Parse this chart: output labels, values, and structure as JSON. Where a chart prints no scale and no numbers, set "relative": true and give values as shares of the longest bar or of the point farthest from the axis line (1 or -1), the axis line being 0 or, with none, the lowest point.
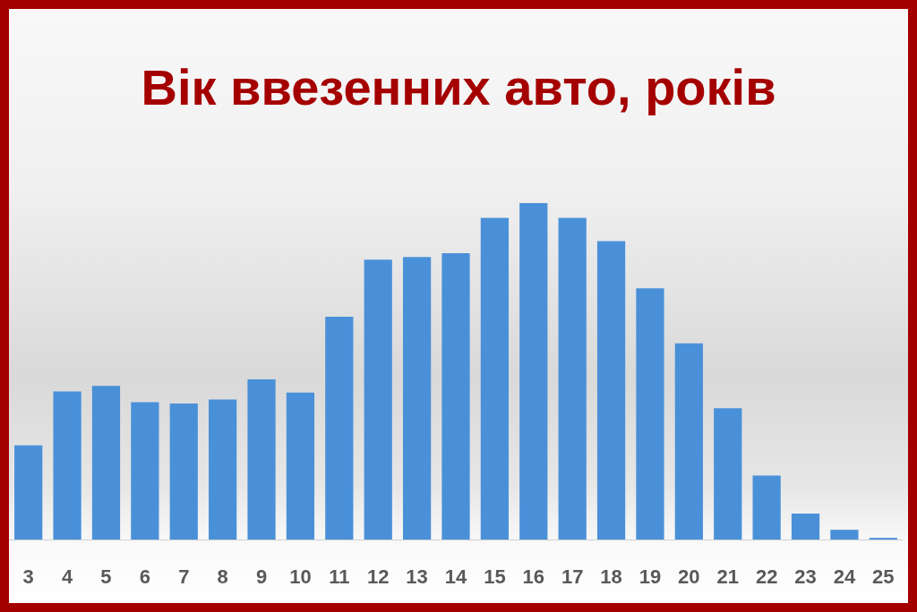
{
  "chart_data": {
    "type": "bar",
    "title": "Вік ввезенних авто, років",
    "categories": [
      "3",
      "4",
      "5",
      "6",
      "7",
      "8",
      "9",
      "10",
      "11",
      "12",
      "13",
      "14",
      "15",
      "16",
      "17",
      "18",
      "19",
      "20",
      "21",
      "22",
      "23",
      "24",
      "25"
    ],
    "values": [
      0.28,
      0.44,
      0.457,
      0.408,
      0.404,
      0.416,
      0.476,
      0.437,
      0.662,
      0.832,
      0.84,
      0.851,
      0.956,
      1,
      0.956,
      0.887,
      0.747,
      0.583,
      0.39,
      0.19,
      0.077,
      0.029,
      0.005
    ],
    "color": "#4a90d9",
    "relative": true
  }
}
